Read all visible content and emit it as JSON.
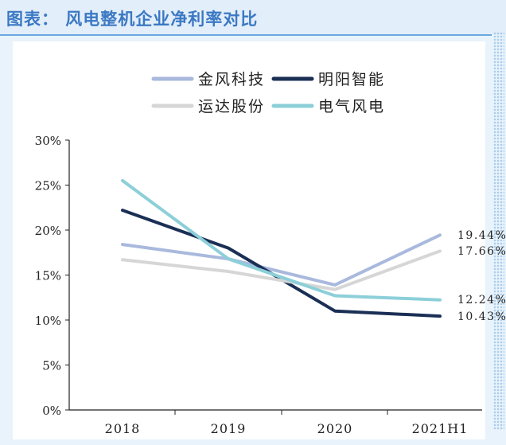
{
  "title": "图表：  风电整机企业净利率对比",
  "chart_data": {
    "type": "line",
    "title": "风电整机企业净利率对比",
    "categories": [
      "2018",
      "2019",
      "2020",
      "2021H1"
    ],
    "xlabel": "",
    "ylabel": "",
    "ylim": [
      0,
      30
    ],
    "yticks": [
      "0%",
      "5%",
      "10%",
      "15%",
      "20%",
      "25%",
      "30%"
    ],
    "grid": false,
    "legend_position": "top",
    "series": [
      {
        "name": "金风科技",
        "color": "#a9b9dd",
        "values": [
          18.4,
          16.8,
          13.9,
          19.44
        ],
        "end_label": "19.44%"
      },
      {
        "name": "明阳智能",
        "color": "#1b2f55",
        "values": [
          22.2,
          18.0,
          11.0,
          10.43
        ],
        "end_label": "10.43%"
      },
      {
        "name": "运达股份",
        "color": "#d6d6d6",
        "values": [
          16.7,
          15.4,
          13.4,
          17.66
        ],
        "end_label": "17.66%"
      },
      {
        "name": "电气风电",
        "color": "#8ccfd9",
        "values": [
          25.5,
          16.8,
          12.7,
          12.24
        ],
        "end_label": "12.24%"
      }
    ]
  }
}
